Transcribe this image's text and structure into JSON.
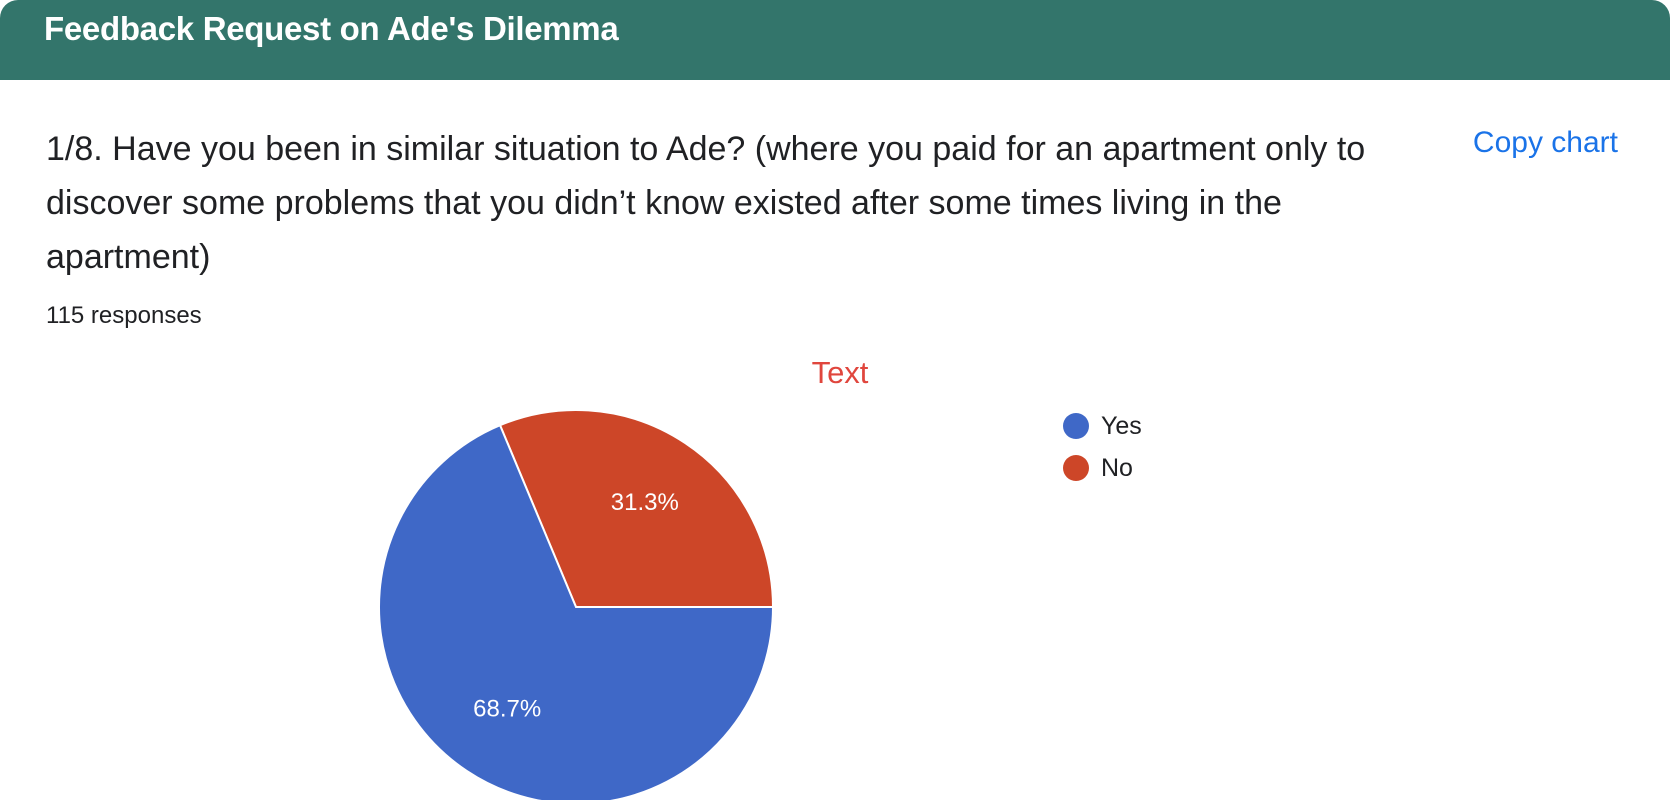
{
  "header": {
    "title": "Feedback Request on Ade's Dilemma"
  },
  "question": {
    "text": "1/8. Have you been in similar situation to Ade? (where you paid for an apartment only to discover some problems that you didn’t know existed after some times living in the apartment)",
    "response_count": "115 responses",
    "copy_chart_label": "Copy chart"
  },
  "chart_data": {
    "type": "pie",
    "title": "Text",
    "legend_position": "right",
    "categories": [
      "Yes",
      "No"
    ],
    "values": [
      68.7,
      31.3
    ],
    "labels": [
      "68.7%",
      "31.3%"
    ],
    "colors": [
      "#3f68c7",
      "#cd4628"
    ]
  }
}
